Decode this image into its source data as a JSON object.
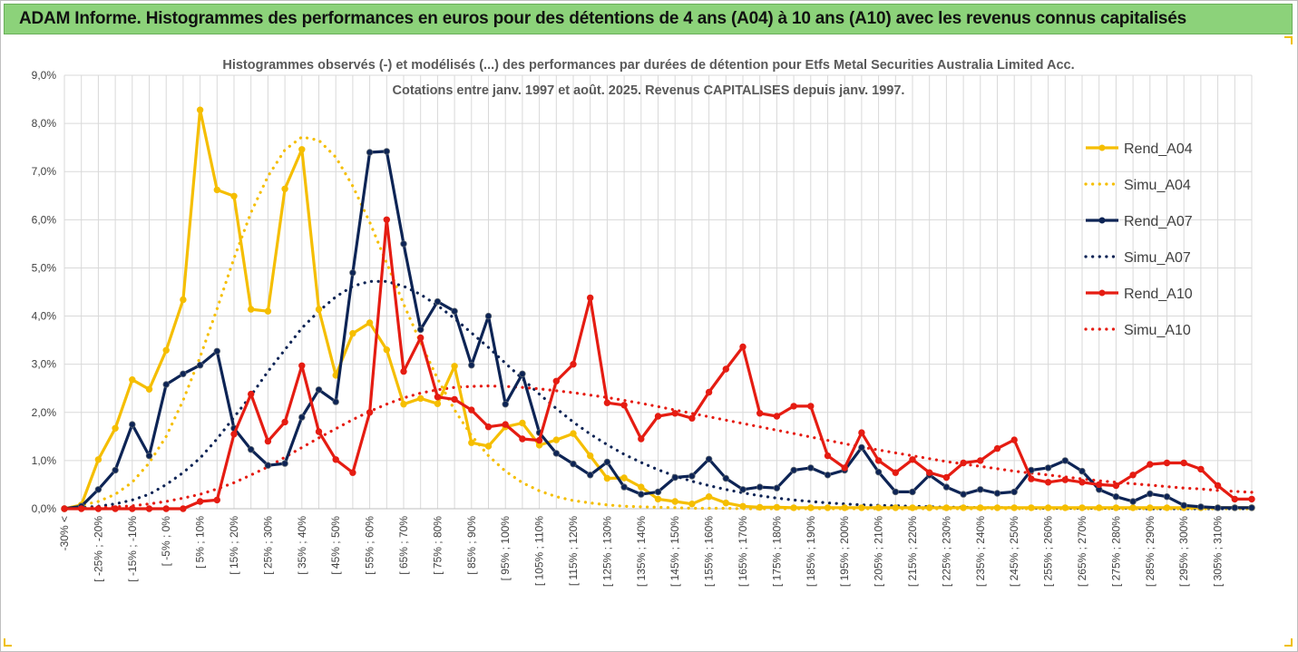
{
  "banner": {
    "title": "ADAM Informe. Histogrammes des performances en euros pour des détentions de 4 ans (A04) à 10 ans (A10) avec les revenus connus capitalisés"
  },
  "chart_data": {
    "type": "line",
    "title_line1": "Histogrammes observés (-) et modélisés (...) des performances par durées de détention pour Etfs Metal Securities Australia Limited Acc.",
    "title_line2": "Cotations entre janv. 1997 et août. 2025. Revenus CAPITALISES depuis janv. 1997.",
    "grid": true,
    "legend_position": "right",
    "ylim": [
      0,
      9
    ],
    "yticks": [
      0,
      1,
      2,
      3,
      4,
      5,
      6,
      7,
      8,
      9
    ],
    "ytick_labels": [
      "0,0%",
      "1,0%",
      "2,0%",
      "3,0%",
      "4,0%",
      "5,0%",
      "6,0%",
      "7,0%",
      "8,0%",
      "9,0%"
    ],
    "x_tick_labels": [
      "-30% <",
      "[ -25% ; -20%",
      "[ -15% ; -10%",
      "[ -5% ; 0%",
      "[ 5% ; 10%",
      "[ 15% ; 20%",
      "[ 25% ; 30%",
      "[ 35% ; 40%",
      "[ 45% ; 50%",
      "[ 55% ; 60%",
      "[ 65% ; 70%",
      "[ 75% ; 80%",
      "[ 85% ; 90%",
      "[ 95% ; 100%",
      "[ 105% ; 110%",
      "[ 115% ; 120%",
      "[ 125% ; 130%",
      "[ 135% ; 140%",
      "[ 145% ; 150%",
      "[ 155% ; 160%",
      "[ 165% ; 170%",
      "[ 175% ; 180%",
      "[ 185% ; 190%",
      "[ 195% ; 200%",
      "[ 205% ; 210%",
      "[ 215% ; 220%",
      "[ 225% ; 230%",
      "[ 235% ; 240%",
      "[ 245% ; 250%",
      "[ 255% ; 260%",
      "[ 265% ; 270%",
      "[ 275% ; 280%",
      "[ 285% ; 290%",
      "[ 295% ; 300%",
      "[ 305% ; 310%"
    ],
    "series": [
      {
        "name": "Rend_A04",
        "style": "solid",
        "color": "#f5be00",
        "values": [
          0.0,
          0.08,
          1.02,
          1.67,
          2.68,
          2.48,
          3.29,
          4.34,
          8.28,
          6.62,
          6.49,
          4.14,
          4.1,
          6.64,
          7.46,
          4.14,
          2.77,
          3.64,
          3.86,
          3.3,
          2.17,
          2.29,
          2.18,
          2.96,
          1.37,
          1.3,
          1.7,
          1.78,
          1.32,
          1.43,
          1.56,
          1.1,
          0.63,
          0.64,
          0.45,
          0.2,
          0.15,
          0.1,
          0.25,
          0.12,
          0.05,
          0.03,
          0.03,
          0.02,
          0.02,
          0.02,
          0.02,
          0.02,
          0.02,
          0.02,
          0.02,
          0.02,
          0.02,
          0.02,
          0.02,
          0.02,
          0.02,
          0.02,
          0.02,
          0.02,
          0.02,
          0.02,
          0.02,
          0.02,
          0.02,
          0.02,
          0.02,
          0.02,
          0.02,
          0.02,
          0.02
        ]
      },
      {
        "name": "Simu_A04",
        "style": "dotted",
        "color": "#f5be00",
        "values": [
          0.0,
          0.07,
          0.15,
          0.3,
          0.55,
          0.95,
          1.5,
          2.25,
          3.15,
          4.15,
          5.2,
          6.15,
          6.9,
          7.45,
          7.72,
          7.65,
          7.3,
          6.7,
          5.95,
          5.1,
          4.25,
          3.45,
          2.7,
          2.05,
          1.52,
          1.1,
          0.78,
          0.54,
          0.37,
          0.25,
          0.17,
          0.12,
          0.08,
          0.05,
          0.04,
          0.03,
          0.02,
          0.01,
          0.01,
          0.01,
          0.0,
          0.0,
          0.0,
          0.0,
          0.0,
          0.0,
          0.0,
          0.0,
          0.0,
          0.0,
          0.0,
          0.0,
          0.0,
          0.0,
          0.0,
          0.0,
          0.0,
          0.0,
          0.0,
          0.0,
          0.0,
          0.0,
          0.0,
          0.0,
          0.0,
          0.0,
          0.0,
          0.0,
          0.0,
          0.0,
          0.0
        ]
      },
      {
        "name": "Rend_A07",
        "style": "solid",
        "color": "#0d2455",
        "values": [
          0.0,
          0.05,
          0.4,
          0.8,
          1.75,
          1.1,
          2.58,
          2.8,
          2.98,
          3.27,
          1.67,
          1.23,
          0.9,
          0.94,
          1.9,
          2.47,
          2.22,
          4.9,
          7.4,
          7.42,
          5.5,
          3.72,
          4.3,
          4.1,
          2.98,
          4.0,
          2.17,
          2.8,
          1.58,
          1.15,
          0.93,
          0.7,
          0.97,
          0.45,
          0.3,
          0.35,
          0.65,
          0.68,
          1.03,
          0.63,
          0.4,
          0.45,
          0.43,
          0.8,
          0.85,
          0.7,
          0.8,
          1.27,
          0.76,
          0.35,
          0.35,
          0.7,
          0.45,
          0.3,
          0.4,
          0.32,
          0.35,
          0.8,
          0.85,
          1.0,
          0.78,
          0.4,
          0.25,
          0.15,
          0.31,
          0.25,
          0.07,
          0.04,
          0.02,
          0.02,
          0.02
        ]
      },
      {
        "name": "Simu_A07",
        "style": "dotted",
        "color": "#0d2455",
        "values": [
          0.0,
          0.02,
          0.05,
          0.1,
          0.18,
          0.3,
          0.5,
          0.75,
          1.05,
          1.45,
          1.9,
          2.35,
          2.85,
          3.3,
          3.75,
          4.1,
          4.4,
          4.62,
          4.72,
          4.72,
          4.62,
          4.45,
          4.22,
          3.95,
          3.65,
          3.35,
          3.02,
          2.7,
          2.38,
          2.08,
          1.8,
          1.55,
          1.33,
          1.13,
          0.96,
          0.81,
          0.68,
          0.57,
          0.48,
          0.4,
          0.33,
          0.27,
          0.22,
          0.18,
          0.15,
          0.12,
          0.1,
          0.08,
          0.07,
          0.06,
          0.05,
          0.04,
          0.03,
          0.03,
          0.02,
          0.02,
          0.02,
          0.01,
          0.01,
          0.01,
          0.01,
          0.01,
          0.01,
          0.01,
          0.0,
          0.0,
          0.0,
          0.0,
          0.0,
          0.0,
          0.0
        ]
      },
      {
        "name": "Rend_A10",
        "style": "solid",
        "color": "#e51c12",
        "values": [
          0.0,
          0.0,
          0.0,
          0.0,
          0.0,
          0.0,
          0.0,
          0.0,
          0.15,
          0.18,
          1.55,
          2.38,
          1.4,
          1.8,
          2.97,
          1.6,
          1.02,
          0.75,
          2.0,
          6.0,
          2.85,
          3.55,
          2.32,
          2.27,
          2.05,
          1.7,
          1.75,
          1.45,
          1.42,
          2.65,
          3.0,
          4.38,
          2.2,
          2.15,
          1.45,
          1.92,
          1.98,
          1.88,
          2.42,
          2.9,
          3.36,
          1.98,
          1.92,
          2.13,
          2.13,
          1.1,
          0.85,
          1.58,
          1.0,
          0.75,
          1.02,
          0.75,
          0.65,
          0.95,
          1.0,
          1.25,
          1.43,
          0.62,
          0.55,
          0.6,
          0.55,
          0.5,
          0.48,
          0.7,
          0.92,
          0.95,
          0.95,
          0.82,
          0.48,
          0.2,
          0.2
        ]
      },
      {
        "name": "Simu_A10",
        "style": "dotted",
        "color": "#e51c12",
        "values": [
          0.0,
          0.01,
          0.02,
          0.04,
          0.06,
          0.1,
          0.15,
          0.22,
          0.3,
          0.41,
          0.54,
          0.7,
          0.87,
          1.07,
          1.27,
          1.47,
          1.66,
          1.85,
          2.02,
          2.17,
          2.3,
          2.4,
          2.47,
          2.52,
          2.54,
          2.55,
          2.54,
          2.52,
          2.49,
          2.45,
          2.41,
          2.36,
          2.31,
          2.25,
          2.19,
          2.12,
          2.05,
          1.98,
          1.91,
          1.84,
          1.77,
          1.7,
          1.63,
          1.56,
          1.49,
          1.42,
          1.35,
          1.28,
          1.22,
          1.16,
          1.1,
          1.04,
          0.98,
          0.93,
          0.88,
          0.83,
          0.78,
          0.74,
          0.7,
          0.66,
          0.62,
          0.58,
          0.55,
          0.52,
          0.49,
          0.46,
          0.43,
          0.41,
          0.38,
          0.36,
          0.34
        ]
      }
    ]
  }
}
